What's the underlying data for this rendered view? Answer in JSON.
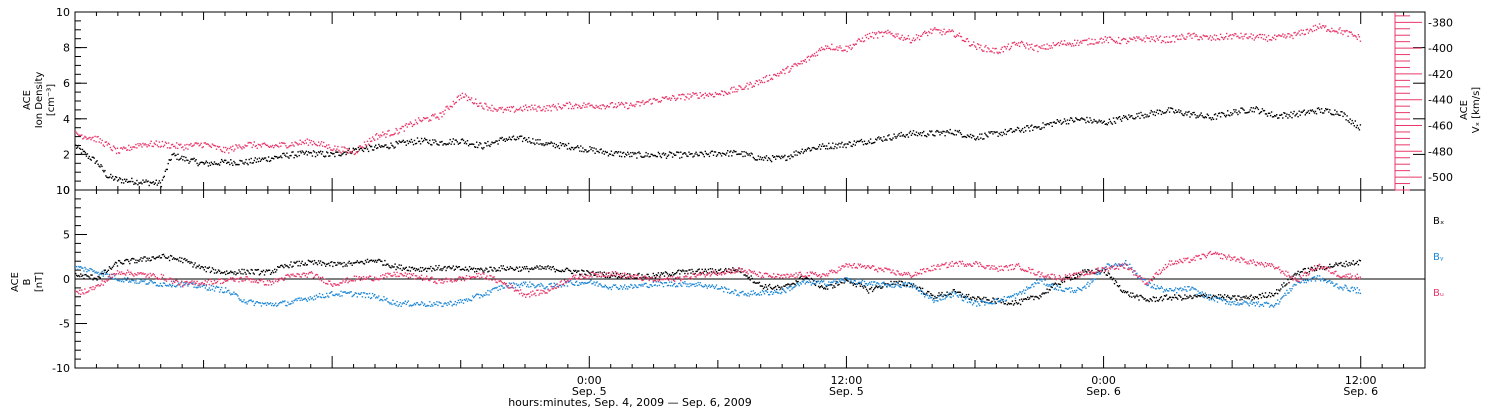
{
  "colors": {
    "black": "#000000",
    "red": "#e8386a",
    "blue": "#1e88d6",
    "axis": "#000000"
  },
  "chart_data": [
    {
      "type": "scatter",
      "panel": "top",
      "ylabel_lines": [
        "ACE",
        "Ion Density",
        "[cm⁻³]"
      ],
      "ylim": [
        0,
        10
      ],
      "yticks": [
        0,
        2,
        4,
        6,
        8,
        10
      ],
      "right_axis": {
        "label_lines": [
          "ACE",
          "Vₓ [km/s]"
        ],
        "ylim": [
          -510,
          -372
        ],
        "yticks": [
          -380,
          -400,
          -420,
          -440,
          -460,
          -480,
          -500
        ]
      },
      "x_hours_range": [
        -24,
        39
      ],
      "series": [
        {
          "axis": "left",
          "color": "black",
          "x": [
            -24,
            -23.5,
            -23,
            -22.5,
            -22,
            -21,
            -20,
            -19.5,
            -19,
            -18,
            -17,
            -16,
            -15,
            -14,
            -13,
            -12,
            -11,
            -10,
            -9,
            -8,
            -7,
            -6,
            -5,
            -4,
            -3,
            -2,
            -1,
            0,
            1,
            2,
            3,
            4,
            5,
            6,
            7,
            8,
            9,
            10,
            11,
            12,
            13,
            14,
            15,
            16,
            17,
            18,
            19,
            20,
            21,
            22,
            23,
            24,
            25,
            26,
            27,
            28,
            29,
            30,
            31,
            32,
            33,
            34,
            35,
            36
          ],
          "values": [
            2.5,
            2.0,
            1.6,
            0.8,
            0.6,
            0.5,
            0.4,
            2.0,
            1.8,
            1.5,
            1.6,
            1.6,
            1.8,
            2.0,
            2.1,
            2.0,
            2.3,
            2.4,
            2.6,
            2.8,
            2.7,
            2.8,
            2.5,
            2.9,
            2.9,
            2.6,
            2.5,
            2.3,
            2.1,
            2.0,
            2.0,
            2.0,
            2.0,
            2.1,
            2.1,
            1.8,
            1.8,
            2.3,
            2.5,
            2.6,
            2.8,
            3.0,
            3.2,
            3.2,
            3.3,
            3.0,
            3.2,
            3.4,
            3.6,
            3.9,
            4.0,
            3.8,
            4.1,
            4.3,
            4.5,
            4.3,
            4.1,
            4.4,
            4.6,
            4.2,
            4.3,
            4.5,
            4.4,
            3.5
          ]
        },
        {
          "axis": "right",
          "color": "red",
          "x": [
            -24,
            -23,
            -22,
            -21,
            -20,
            -19,
            -18,
            -17,
            -16,
            -15,
            -14,
            -13,
            -12,
            -11,
            -10,
            -9,
            -8,
            -7,
            -6,
            -5,
            -4,
            -3,
            -2,
            -1,
            0,
            1,
            2,
            3,
            4,
            5,
            6,
            7,
            8,
            9,
            10,
            11,
            12,
            13,
            14,
            15,
            16,
            17,
            18,
            19,
            20,
            21,
            22,
            23,
            24,
            25,
            26,
            27,
            28,
            29,
            30,
            31,
            32,
            33,
            34,
            35,
            36
          ],
          "values": [
            -466,
            -470,
            -480,
            -474,
            -474,
            -476,
            -474,
            -479,
            -474,
            -476,
            -474,
            -472,
            -477,
            -480,
            -468,
            -464,
            -456,
            -452,
            -436,
            -444,
            -448,
            -446,
            -446,
            -444,
            -444,
            -444,
            -444,
            -440,
            -438,
            -436,
            -435,
            -431,
            -425,
            -418,
            -410,
            -398,
            -400,
            -390,
            -388,
            -393,
            -386,
            -388,
            -398,
            -402,
            -396,
            -400,
            -396,
            -395,
            -393,
            -394,
            -392,
            -393,
            -390,
            -392,
            -390,
            -391,
            -392,
            -389,
            -383,
            -386,
            -392
          ]
        }
      ]
    },
    {
      "type": "scatter",
      "panel": "bottom",
      "ylabel_lines": [
        "ACE",
        "B",
        "[nT]"
      ],
      "ylim": [
        -10,
        10
      ],
      "yticks": [
        -10,
        -5,
        0,
        5,
        10
      ],
      "zero_line": true,
      "x_hours_range": [
        -24,
        39
      ],
      "series": [
        {
          "name": "Bₓ",
          "color": "black",
          "x": [
            -24,
            -23,
            -22,
            -21,
            -20,
            -19,
            -18,
            -17,
            -16,
            -15,
            -14,
            -13,
            -12,
            -11,
            -10,
            -9,
            -8,
            -7,
            -6,
            -5,
            -4,
            -3,
            -2,
            -1,
            0,
            1,
            2,
            3,
            4,
            5,
            6,
            7,
            8,
            9,
            10,
            11,
            12,
            13,
            14,
            15,
            16,
            17,
            18,
            19,
            20,
            21,
            22,
            23,
            24,
            25,
            26,
            27,
            28,
            29,
            30,
            31,
            32,
            33,
            34,
            35,
            36
          ],
          "values": [
            0.5,
            0.2,
            1.9,
            2.2,
            2.6,
            2.2,
            1.2,
            0.8,
            0.9,
            0.8,
            1.7,
            1.9,
            1.7,
            1.8,
            2.2,
            1.4,
            1.2,
            1.3,
            1.2,
            1.1,
            1.3,
            1.2,
            1.3,
            1.0,
            0.7,
            0.5,
            0.4,
            0.4,
            0.8,
            0.9,
            1.0,
            1.1,
            -0.7,
            -1.0,
            0.3,
            -1.0,
            0.0,
            -1.2,
            -0.4,
            -0.5,
            -1.9,
            -1.4,
            -2.2,
            -2.4,
            -2.6,
            -1.8,
            -0.2,
            0.8,
            1.0,
            -1.5,
            -2.3,
            -2.0,
            -2.0,
            -1.8,
            -2.1,
            -2.0,
            -1.5,
            0.8,
            1.3,
            1.7,
            2.0
          ]
        },
        {
          "name": "Bᵧ",
          "color": "blue",
          "x": [
            -24,
            -23,
            -22,
            -21,
            -20,
            -19,
            -18,
            -17,
            -16,
            -15,
            -14,
            -13,
            -12,
            -11,
            -10,
            -9,
            -8,
            -7,
            -6,
            -5,
            -4,
            -3,
            -2,
            -1,
            0,
            1,
            2,
            3,
            4,
            5,
            6,
            7,
            8,
            9,
            10,
            11,
            12,
            13,
            14,
            15,
            16,
            17,
            18,
            19,
            20,
            21,
            22,
            23,
            24,
            25,
            26,
            27,
            28,
            29,
            30,
            31,
            32,
            33,
            34,
            35,
            36
          ],
          "values": [
            1.4,
            0.9,
            0.1,
            -0.2,
            -0.5,
            -0.5,
            -0.8,
            -1.2,
            -2.5,
            -2.8,
            -2.6,
            -2.0,
            -1.6,
            -1.6,
            -1.9,
            -2.7,
            -2.7,
            -2.8,
            -2.5,
            -1.7,
            -0.7,
            -0.5,
            -0.8,
            -0.4,
            -0.3,
            -0.8,
            -0.8,
            -0.5,
            -0.5,
            -0.5,
            -0.9,
            -1.6,
            -1.5,
            -1.3,
            -0.3,
            -0.4,
            0.0,
            -0.5,
            -0.6,
            -0.6,
            -2.3,
            -1.6,
            -2.7,
            -2.4,
            -1.7,
            -0.1,
            -1.1,
            -1.2,
            1.4,
            1.9,
            -0.5,
            -1.3,
            -1.0,
            -2.1,
            -2.6,
            -2.7,
            -2.8,
            -0.3,
            0.2,
            -0.8,
            -1.3
          ]
        },
        {
          "name": "Bᵤ",
          "color": "red",
          "x": [
            -24,
            -23,
            -22,
            -21,
            -20,
            -19,
            -18,
            -17,
            -16,
            -15,
            -14,
            -13,
            -12,
            -11,
            -10,
            -9,
            -8,
            -7,
            -6,
            -5,
            -4,
            -3,
            -2,
            -1,
            0,
            1,
            2,
            3,
            4,
            5,
            6,
            7,
            8,
            9,
            10,
            11,
            12,
            13,
            14,
            15,
            16,
            17,
            18,
            19,
            20,
            21,
            22,
            23,
            24,
            25,
            26,
            27,
            28,
            29,
            30,
            31,
            32,
            33,
            34,
            35,
            36
          ],
          "values": [
            -1.6,
            -0.8,
            0.9,
            0.6,
            0.3,
            -0.5,
            -0.3,
            -0.1,
            0.1,
            -0.4,
            0.4,
            0.6,
            -0.5,
            0.1,
            0.2,
            0.6,
            0.3,
            -0.2,
            0.1,
            0.5,
            -0.4,
            -1.7,
            -1.3,
            0.1,
            0.5,
            0.7,
            0.3,
            0.0,
            0.1,
            0.5,
            0.8,
            1.1,
            0.5,
            0.3,
            0.6,
            0.5,
            1.6,
            1.4,
            0.9,
            0.5,
            1.3,
            1.8,
            1.8,
            1.2,
            1.5,
            0.6,
            0.2,
            0.6,
            1.2,
            1.6,
            -0.4,
            1.8,
            2.2,
            2.9,
            2.4,
            1.9,
            1.4,
            -0.1,
            1.6,
            0.5,
            0.3
          ]
        }
      ]
    }
  ],
  "x_axis": {
    "major_ticks": [
      {
        "hours": 0,
        "time": "0:00",
        "date": "Sep. 5"
      },
      {
        "hours": 12,
        "time": "12:00",
        "date": "Sep. 5"
      },
      {
        "hours": 24,
        "time": "0:00",
        "date": "Sep. 6"
      },
      {
        "hours": 36,
        "time": "12:00",
        "date": "Sep. 6"
      }
    ],
    "xlabel": "hours:minutes, Sep.  4, 2009 — Sep.  6, 2009"
  }
}
